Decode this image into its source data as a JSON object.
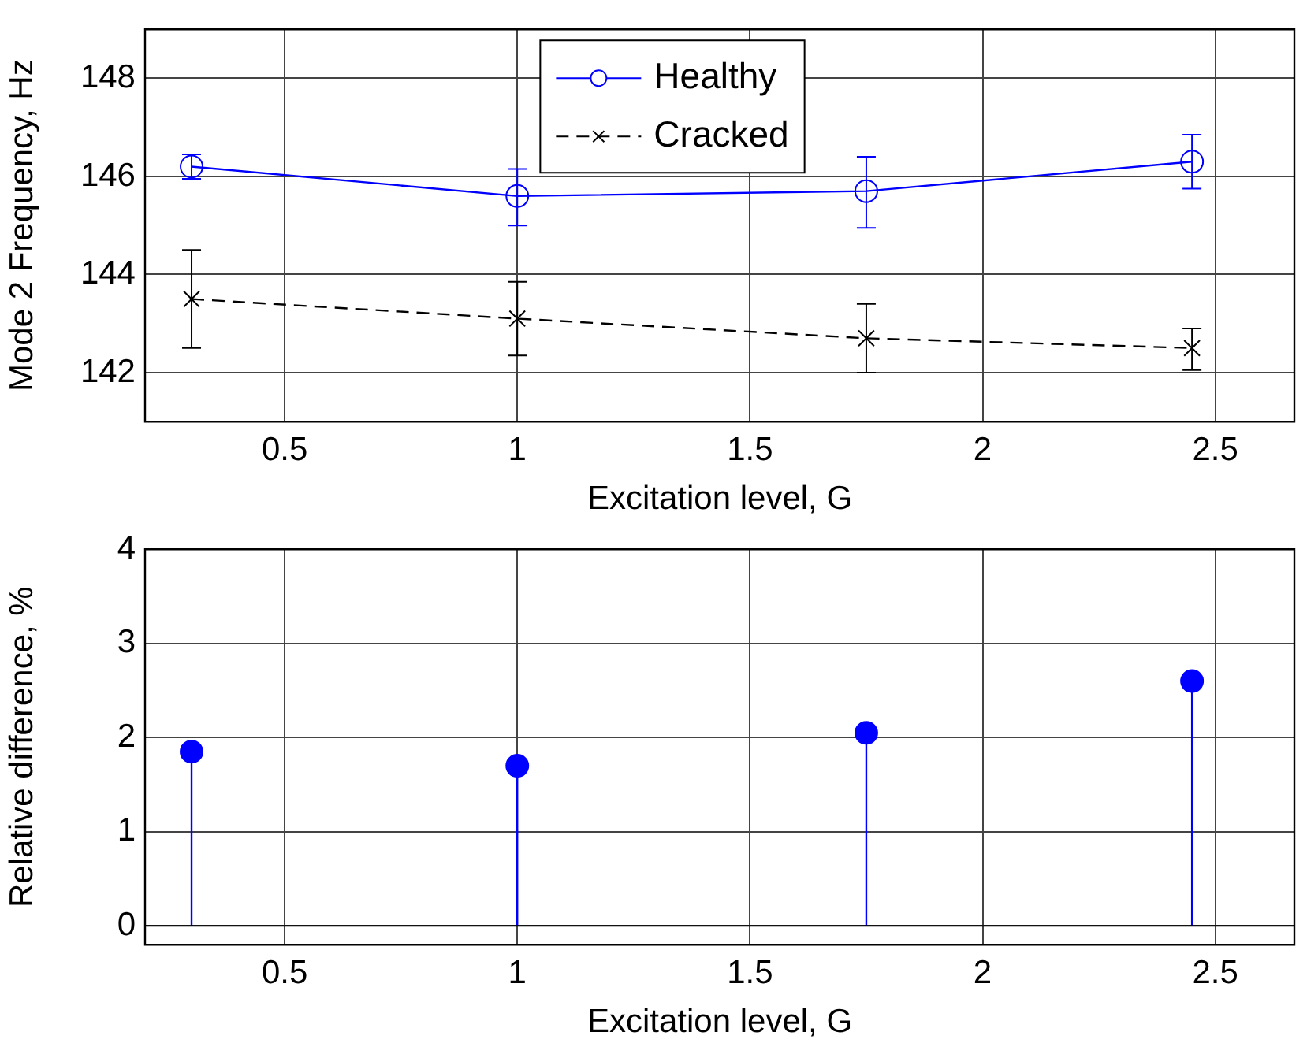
{
  "chart_data": [
    {
      "type": "line",
      "xlabel": "Excitation level, G",
      "ylabel": "Mode 2 Frequency, Hz",
      "xlim": [
        0.2,
        2.67
      ],
      "xticks": [
        0.5,
        1,
        1.5,
        2,
        2.5
      ],
      "ylim": [
        141,
        149
      ],
      "yticks": [
        142,
        144,
        146,
        148
      ],
      "grid": true,
      "legend": "top",
      "x": [
        0.3,
        1,
        1.75,
        2.45
      ],
      "series": [
        {
          "name": "Healthy",
          "color": "#0000ff",
          "marker": "circle",
          "line_style": "solid",
          "values": [
            146.2,
            145.6,
            145.7,
            146.3
          ],
          "errors": [
            [
              145.95,
              146.45
            ],
            [
              145.0,
              146.15
            ],
            [
              144.95,
              146.4
            ],
            [
              145.75,
              146.85
            ]
          ]
        },
        {
          "name": "Cracked",
          "color": "#000000",
          "marker": "cross",
          "line_style": "dashed",
          "values": [
            143.5,
            143.1,
            142.7,
            142.5
          ],
          "errors": [
            [
              142.5,
              144.5
            ],
            [
              142.35,
              143.85
            ],
            [
              142.0,
              143.4
            ],
            [
              142.05,
              142.9
            ]
          ]
        }
      ]
    },
    {
      "type": "lollipop",
      "xlabel": "Excitation level, G",
      "ylabel": "Relative difference, %",
      "xlim": [
        0.2,
        2.67
      ],
      "xticks": [
        0.5,
        1,
        1.5,
        2,
        2.5
      ],
      "ylim": [
        -0.2,
        4
      ],
      "yticks": [
        0,
        1,
        2,
        3,
        4
      ],
      "grid": true,
      "x": [
        0.3,
        1,
        1.75,
        2.45
      ],
      "marker": "circle",
      "series": [
        {
          "color": "#0000ff",
          "values": [
            1.85,
            1.7,
            2.05,
            2.6
          ]
        }
      ]
    }
  ]
}
